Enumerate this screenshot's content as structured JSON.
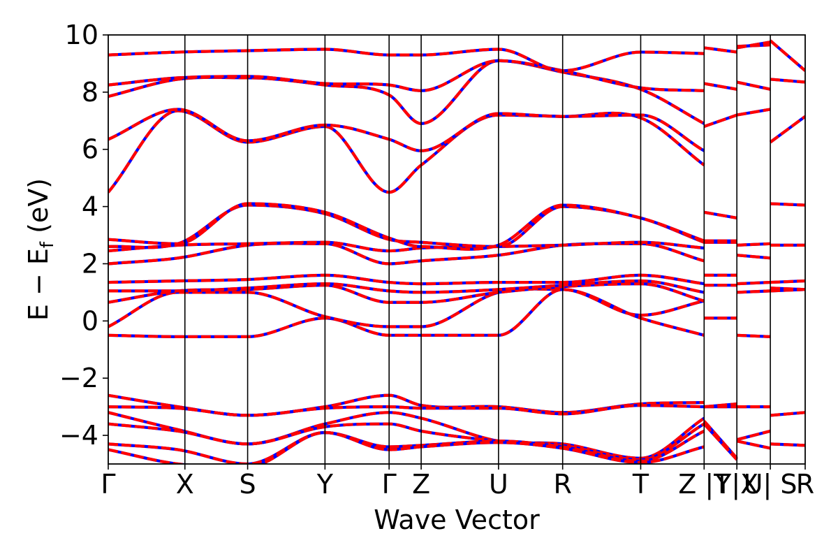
{
  "chart_data": {
    "type": "line",
    "title": "",
    "xlabel": "Wave Vector",
    "ylabel_main": "E − E",
    "ylabel_sub": "f",
    "ylabel_unit": " (eV)",
    "ylim": [
      -5,
      10
    ],
    "yticks": [
      {
        "value": -4,
        "label": "−4"
      },
      {
        "value": -2,
        "label": "−2"
      },
      {
        "value": 0,
        "label": "0"
      },
      {
        "value": 2,
        "label": "2"
      },
      {
        "value": 4,
        "label": "4"
      },
      {
        "value": 6,
        "label": "6"
      },
      {
        "value": 8,
        "label": "8"
      },
      {
        "value": 10,
        "label": "10"
      }
    ],
    "kpoints": [
      {
        "label": "Γ",
        "x": 0.0
      },
      {
        "label": "X",
        "x": 0.11
      },
      {
        "label": "S",
        "x": 0.2
      },
      {
        "label": "Y",
        "x": 0.311
      },
      {
        "label": "Γ",
        "x": 0.403
      },
      {
        "label": "Z",
        "x": 0.449
      },
      {
        "label": "U",
        "x": 0.56
      },
      {
        "label": "R",
        "x": 0.652
      },
      {
        "label": "T",
        "x": 0.764
      },
      {
        "label": "Z |T",
        "x": 0.855
      },
      {
        "label": "Y|X",
        "x": 0.902
      },
      {
        "label": "U| S",
        "x": 0.95
      },
      {
        "label": "R",
        "x": 1.0
      }
    ],
    "grid": false,
    "series_colors": {
      "red": "#ff0000",
      "blue": "#0000ff"
    },
    "segments": [
      {
        "x": [
          0,
          0.1,
          0.2,
          0.311,
          0.403,
          0.449,
          0.56,
          0.652,
          0.764,
          0.855
        ],
        "bands": [
          [
            -0.5,
            -0.55,
            -0.55,
            0.1,
            -0.5,
            -0.5,
            -0.5,
            1.1,
            0.1,
            -0.5
          ],
          [
            -0.2,
            1.0,
            1.0,
            0.15,
            -0.2,
            -0.2,
            1.0,
            1.1,
            0.2,
            0.7
          ],
          [
            0.65,
            1.05,
            1.1,
            1.25,
            0.65,
            0.65,
            1.0,
            1.2,
            1.3,
            0.7
          ],
          [
            1.05,
            1.05,
            1.15,
            1.3,
            1.05,
            1.0,
            1.1,
            1.25,
            1.4,
            1.0
          ],
          [
            1.35,
            1.4,
            1.45,
            1.6,
            1.35,
            1.3,
            1.35,
            1.35,
            1.6,
            1.3
          ],
          [
            2.0,
            2.2,
            2.65,
            2.7,
            2.0,
            2.1,
            2.3,
            2.65,
            2.7,
            2.1
          ],
          [
            2.45,
            2.65,
            2.7,
            2.75,
            2.45,
            2.55,
            2.6,
            2.65,
            2.75,
            2.55
          ],
          [
            2.6,
            2.7,
            4.05,
            3.75,
            2.85,
            2.75,
            2.6,
            4.0,
            3.6,
            2.75
          ],
          [
            2.85,
            2.7,
            4.1,
            3.8,
            2.9,
            2.6,
            2.65,
            4.05,
            3.6,
            2.8
          ],
          [
            4.5,
            7.35,
            6.25,
            6.8,
            4.5,
            5.45,
            7.2,
            7.15,
            7.1,
            5.45
          ],
          [
            6.35,
            7.4,
            6.3,
            6.85,
            6.35,
            5.95,
            7.25,
            7.15,
            7.2,
            5.95
          ],
          [
            7.85,
            8.45,
            8.5,
            8.25,
            7.9,
            6.9,
            9.1,
            8.7,
            8.1,
            6.9
          ],
          [
            8.25,
            8.5,
            8.55,
            8.3,
            8.25,
            8.05,
            9.1,
            8.75,
            8.15,
            8.05
          ],
          [
            9.3,
            9.4,
            9.45,
            9.5,
            9.3,
            9.3,
            9.5,
            8.75,
            9.4,
            9.35
          ],
          [
            -2.6,
            -3.0,
            -3.3,
            -3.0,
            -2.6,
            -2.95,
            -3.0,
            -3.2,
            -2.9,
            -2.85
          ],
          [
            -3.0,
            -3.05,
            -3.3,
            -3.05,
            -3.0,
            -3.05,
            -3.05,
            -3.25,
            -2.95,
            -3.0
          ],
          [
            -3.2,
            -3.8,
            -4.3,
            -3.6,
            -3.2,
            -3.4,
            -4.2,
            -4.3,
            -4.8,
            -3.4
          ],
          [
            -3.6,
            -3.85,
            -4.3,
            -3.7,
            -3.6,
            -3.85,
            -4.2,
            -4.35,
            -4.85,
            -3.6
          ],
          [
            -4.3,
            -4.5,
            -5.0,
            -3.9,
            -4.4,
            -4.35,
            -4.2,
            -4.4,
            -4.9,
            -3.85
          ],
          [
            -4.5,
            -5.0,
            -5.1,
            -3.9,
            -4.5,
            -4.4,
            -4.25,
            -4.45,
            -4.95,
            -4.4
          ]
        ]
      },
      {
        "x": [
          0.855,
          0.902
        ],
        "bands": [
          [
            0.1,
            0.1
          ],
          [
            1.25,
            1.25
          ],
          [
            1.6,
            1.6
          ],
          [
            2.75,
            2.75
          ],
          [
            2.8,
            2.8
          ],
          [
            3.8,
            3.6
          ],
          [
            6.8,
            7.2
          ],
          [
            8.3,
            8.1
          ],
          [
            9.55,
            9.4
          ],
          [
            -3.0,
            -3.0
          ],
          [
            -3.0,
            -2.9
          ],
          [
            -3.5,
            -4.8
          ],
          [
            -3.6,
            -4.85
          ]
        ]
      },
      {
        "x": [
          0.902,
          0.95
        ],
        "bands": [
          [
            -0.5,
            -0.55
          ],
          [
            1.0,
            1.05
          ],
          [
            1.3,
            1.35
          ],
          [
            2.3,
            2.2
          ],
          [
            2.65,
            2.7
          ],
          [
            7.2,
            7.4
          ],
          [
            8.35,
            8.1
          ],
          [
            9.6,
            9.65
          ],
          [
            9.55,
            9.75
          ],
          [
            -3.0,
            -3.0
          ],
          [
            -4.15,
            -3.85
          ],
          [
            -4.2,
            -4.45
          ]
        ]
      },
      {
        "x": [
          0.95,
          1.0
        ],
        "bands": [
          [
            1.05,
            1.1
          ],
          [
            1.15,
            1.1
          ],
          [
            1.35,
            1.4
          ],
          [
            2.65,
            2.65
          ],
          [
            4.1,
            4.05
          ],
          [
            6.25,
            7.15
          ],
          [
            8.45,
            8.35
          ],
          [
            9.8,
            8.75
          ],
          [
            -3.3,
            -3.2
          ],
          [
            -4.3,
            -4.35
          ]
        ]
      }
    ]
  }
}
